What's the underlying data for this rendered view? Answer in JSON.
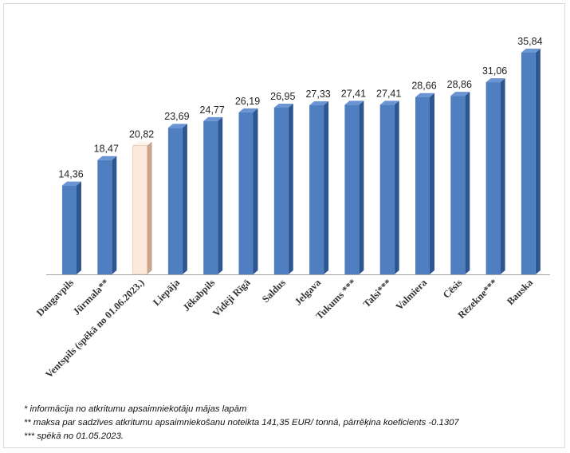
{
  "chart_data": {
    "type": "bar",
    "categories": [
      "Daugavpils",
      "Jūrmala**",
      "Ventspils (spēkā no 01.06.2023.)",
      "Liepāja",
      "Jēkabpils",
      "Vidēji Rīgā",
      "Saldus",
      "Jelgava",
      "Tukums ***",
      "Talsi***",
      "Valmiera",
      "Cēsis",
      "Rēzekne***",
      "Bauska"
    ],
    "values": [
      14.36,
      18.47,
      20.82,
      23.69,
      24.77,
      26.19,
      26.95,
      27.33,
      27.41,
      27.41,
      28.66,
      28.86,
      31.06,
      35.84
    ],
    "value_labels": [
      "14,36",
      "18,47",
      "20,82",
      "23,69",
      "24,77",
      "26,19",
      "26,95",
      "27,33",
      "27,41",
      "27,41",
      "28,66",
      "28,86",
      "31,06",
      "35,84"
    ],
    "highlight_index": 2,
    "colors": {
      "bar_front": "#4f7fc1",
      "bar_side": "#2e5791",
      "bar_top": "#6a95d2",
      "highlight_front": "#fde9dc",
      "highlight_side": "#c9a58f",
      "highlight_top": "#fff4ec",
      "axis": "#a6a6a6"
    },
    "ylim": [
      0,
      40
    ],
    "grid": false,
    "legend": "none",
    "title": "",
    "xlabel": "",
    "ylabel": ""
  },
  "footnotes": [
    "* informācija no atkritumu apsaimniekotāju mājas lapām",
    "** maksa par sadzīves atkritumu apsaimniekošanu noteikta  141,35 EUR/ tonnā, pārrēķina koeficients -0.1307",
    "*** spēkā no 01.05.2023."
  ]
}
